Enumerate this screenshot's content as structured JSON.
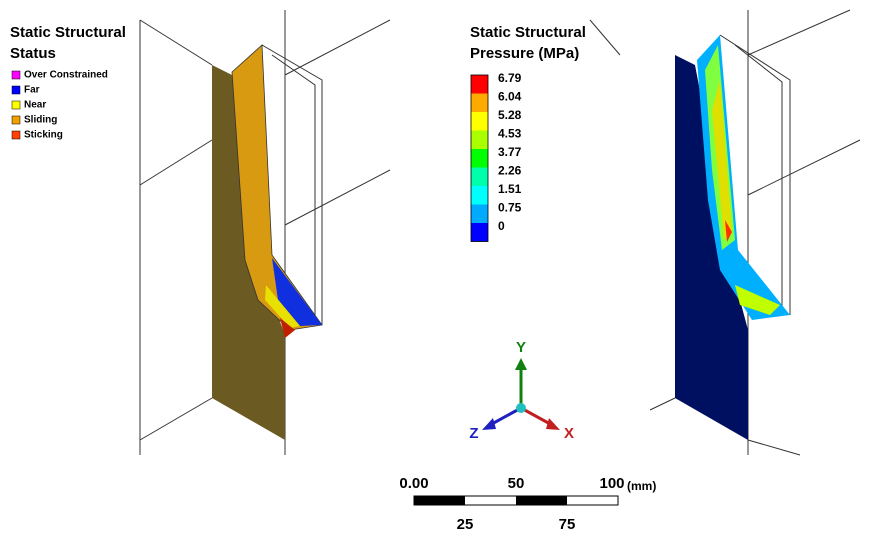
{
  "status_legend": {
    "title": [
      "Static Structural",
      "Status"
    ],
    "items": [
      {
        "label": "Over Constrained",
        "color": "#ff00ff"
      },
      {
        "label": "Far",
        "color": "#0000ff"
      },
      {
        "label": "Near",
        "color": "#ffff00"
      },
      {
        "label": "Sliding",
        "color": "#f0a000"
      },
      {
        "label": "Sticking",
        "color": "#ff4000"
      }
    ]
  },
  "pressure_legend": {
    "title": [
      "Static Structural",
      "Pressure (MPa)"
    ],
    "levels": [
      {
        "label": 6.79,
        "color": "#ff0000"
      },
      {
        "label": 6.04,
        "color": "#ffaa00"
      },
      {
        "label": 5.28,
        "color": "#ffff00"
      },
      {
        "label": 4.53,
        "color": "#aaff00"
      },
      {
        "label": 3.77,
        "color": "#00ff00"
      },
      {
        "label": 2.26,
        "color": "#00ffaa"
      },
      {
        "label": 1.51,
        "color": "#00ffff"
      },
      {
        "label": 0.75,
        "color": "#00aaff"
      },
      {
        "label": 0,
        "color": "#0000ff"
      }
    ]
  },
  "triad": {
    "y": "Y",
    "x": "X",
    "z": "Z"
  },
  "scale_bar": {
    "top": [
      "0.00",
      "50",
      "100"
    ],
    "unit": "(mm)",
    "bottom": [
      "25",
      "75"
    ]
  }
}
